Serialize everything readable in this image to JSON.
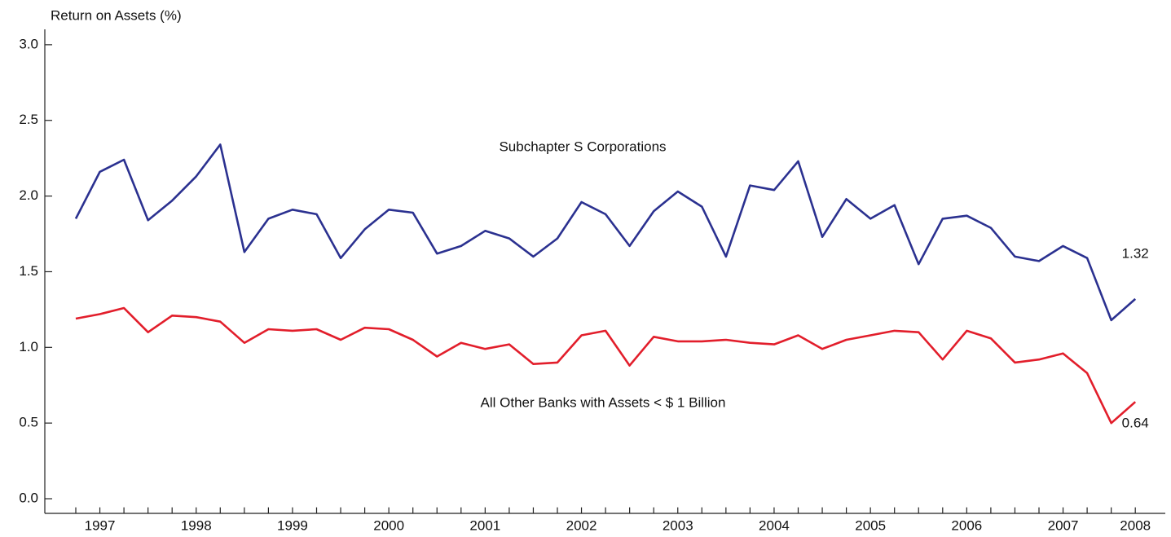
{
  "chart_data": {
    "type": "line",
    "y_label": "Return on Assets (%)",
    "categories": [
      null,
      "1997",
      null,
      null,
      null,
      "1998",
      null,
      null,
      null,
      "1999",
      null,
      null,
      null,
      "2000",
      null,
      null,
      null,
      "2001",
      null,
      null,
      null,
      "2002",
      null,
      null,
      null,
      "2003",
      null,
      null,
      null,
      "2004",
      null,
      null,
      null,
      "2005",
      null,
      null,
      null,
      "2006",
      null,
      null,
      null,
      "2007",
      null,
      null,
      "2008"
    ],
    "series": [
      {
        "name": "Subchapter S Corporations",
        "color": "#2b3190",
        "values": [
          1.85,
          2.16,
          2.24,
          1.84,
          1.97,
          2.13,
          2.34,
          1.63,
          1.85,
          1.91,
          1.88,
          1.59,
          1.78,
          1.91,
          1.89,
          1.62,
          1.67,
          1.77,
          1.72,
          1.6,
          1.72,
          1.96,
          1.88,
          1.67,
          1.9,
          2.03,
          1.93,
          1.6,
          2.07,
          2.04,
          2.23,
          1.73,
          1.98,
          1.85,
          1.94,
          1.55,
          1.85,
          1.87,
          1.79,
          1.6,
          1.57,
          1.67,
          1.59,
          1.18,
          1.32
        ]
      },
      {
        "name": "All Other Banks with Assets < $ 1 Billion",
        "color": "#e21e2b",
        "values": [
          1.19,
          1.22,
          1.26,
          1.1,
          1.21,
          1.2,
          1.17,
          1.03,
          1.12,
          1.11,
          1.12,
          1.05,
          1.13,
          1.12,
          1.05,
          0.94,
          1.03,
          0.99,
          1.02,
          0.89,
          0.9,
          1.08,
          1.11,
          0.88,
          1.07,
          1.04,
          1.04,
          1.05,
          1.03,
          1.02,
          1.08,
          0.99,
          1.05,
          1.08,
          1.11,
          1.1,
          0.92,
          1.11,
          1.06,
          0.9,
          0.92,
          0.96,
          0.83,
          0.5,
          0.64
        ]
      }
    ],
    "ylim": [
      -0.1,
      3.1
    ],
    "yticks": [
      {
        "value": 0,
        "label": "0.0"
      },
      {
        "value": 0.5,
        "label": "0.5"
      },
      {
        "value": 1,
        "label": "1.0"
      },
      {
        "value": 1.5,
        "label": "1.5"
      },
      {
        "value": 2,
        "label": "2.0"
      },
      {
        "value": 2.5,
        "label": "2.5"
      },
      {
        "value": 3,
        "label": "3.0"
      }
    ],
    "grid": false
  }
}
